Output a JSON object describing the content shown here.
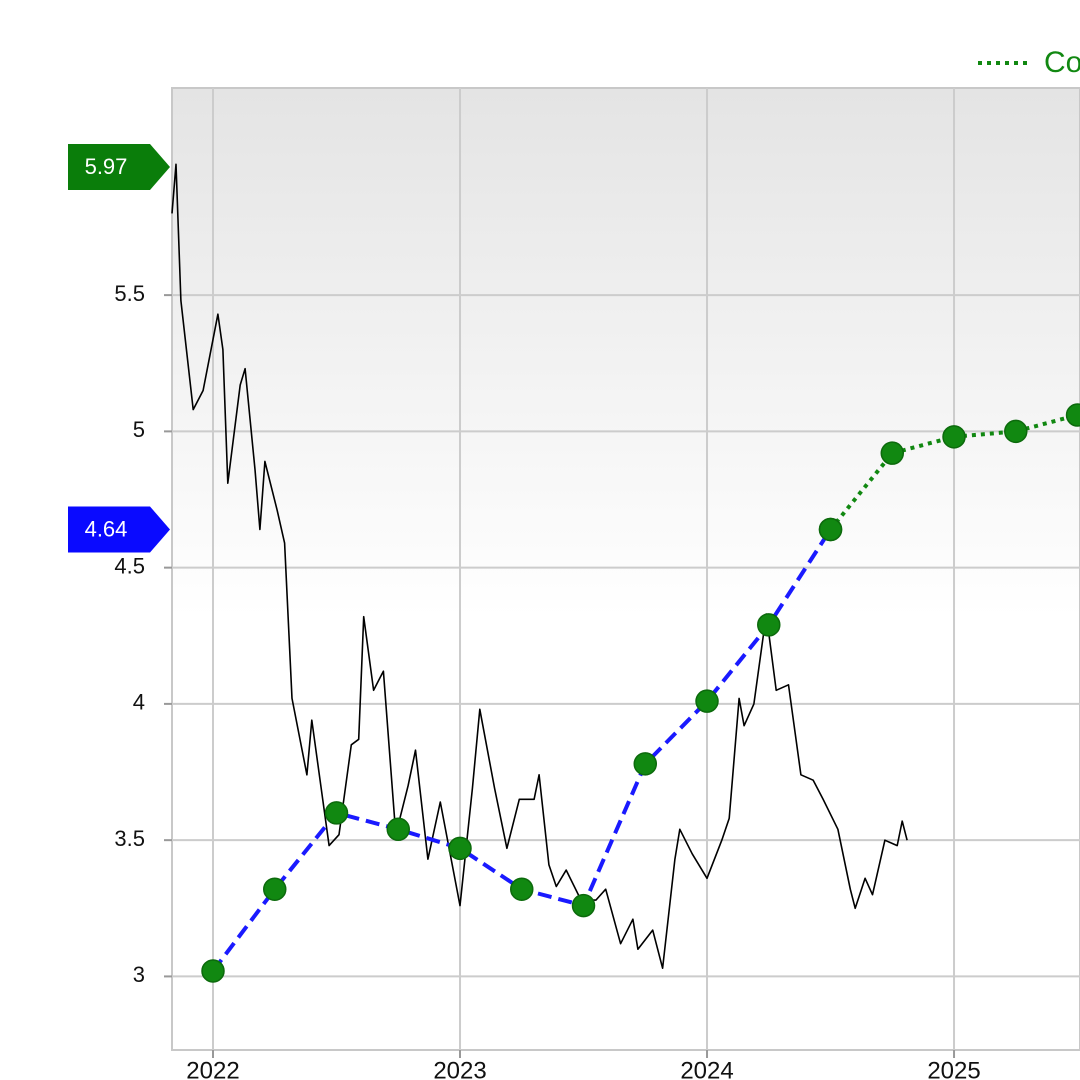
{
  "chart_data": {
    "type": "line",
    "xlim": [
      2021.834,
      2025.51
    ],
    "ylim": [
      2.73,
      6.26
    ],
    "xticks": [
      2022,
      2023,
      2024,
      2025
    ],
    "yticks": [
      3,
      3.5,
      4,
      4.5,
      5,
      5.5
    ],
    "grid": true,
    "legend": "top-right",
    "series": [
      {
        "color": "#000000",
        "style": "solid",
        "x": [
          2021.834,
          2021.85,
          2021.87,
          2021.92,
          2021.96,
          2022.02,
          2022.04,
          2022.06,
          2022.11,
          2022.13,
          2022.17,
          2022.19,
          2022.21,
          2022.26,
          2022.29,
          2022.32,
          2022.38,
          2022.4,
          2022.45,
          2022.47,
          2022.51,
          2022.56,
          2022.59,
          2022.61,
          2022.65,
          2022.69,
          2022.74,
          2022.79,
          2022.82,
          2022.87,
          2022.92,
          2023.0,
          2023.05,
          2023.08,
          2023.14,
          2023.19,
          2023.24,
          2023.3,
          2023.32,
          2023.36,
          2023.39,
          2023.43,
          2023.49,
          2023.55,
          2023.59,
          2023.65,
          2023.7,
          2023.72,
          2023.78,
          2023.82,
          2023.87,
          2023.89,
          2023.94,
          2024.0,
          2024.06,
          2024.09,
          2024.13,
          2024.15,
          2024.19,
          2024.24,
          2024.28,
          2024.33,
          2024.38,
          2024.43,
          2024.47,
          2024.53,
          2024.58,
          2024.6,
          2024.64,
          2024.67,
          2024.72,
          2024.77,
          2024.79,
          2024.81
        ],
        "values": [
          5.8,
          5.98,
          5.48,
          5.08,
          5.15,
          5.43,
          5.3,
          4.81,
          5.17,
          5.23,
          4.86,
          4.64,
          4.89,
          4.71,
          4.59,
          4.02,
          3.74,
          3.94,
          3.61,
          3.48,
          3.52,
          3.85,
          3.87,
          4.32,
          4.05,
          4.12,
          3.52,
          3.7,
          3.83,
          3.43,
          3.64,
          3.26,
          3.69,
          3.98,
          3.69,
          3.47,
          3.65,
          3.65,
          3.74,
          3.41,
          3.33,
          3.39,
          3.28,
          3.28,
          3.32,
          3.12,
          3.21,
          3.1,
          3.17,
          3.03,
          3.43,
          3.54,
          3.45,
          3.36,
          3.5,
          3.58,
          4.02,
          3.92,
          4.0,
          4.33,
          4.05,
          4.07,
          3.74,
          3.72,
          3.65,
          3.54,
          3.32,
          3.25,
          3.36,
          3.3,
          3.5,
          3.48,
          3.57,
          3.5
        ]
      },
      {
        "color": "#1a1aff",
        "style": "dashed",
        "marker_color": "#118811",
        "x": [
          2022.0,
          2022.25,
          2022.5,
          2022.75,
          2023.0,
          2023.25,
          2023.5,
          2023.75,
          2024.0,
          2024.25,
          2024.5
        ],
        "values": [
          3.02,
          3.32,
          3.6,
          3.54,
          3.47,
          3.32,
          3.26,
          3.78,
          4.01,
          4.29,
          4.64
        ]
      },
      {
        "name": "Co",
        "color": "#118811",
        "style": "dotted",
        "marker_color": "#118811",
        "x": [
          2024.5,
          2024.75,
          2025.0,
          2025.25,
          2025.5
        ],
        "values": [
          4.64,
          4.92,
          4.98,
          5.0,
          5.06
        ]
      }
    ],
    "badges": [
      {
        "value": 5.97,
        "color": "#0a7d0a"
      },
      {
        "value": 4.64,
        "color": "#0a0aff"
      }
    ]
  }
}
